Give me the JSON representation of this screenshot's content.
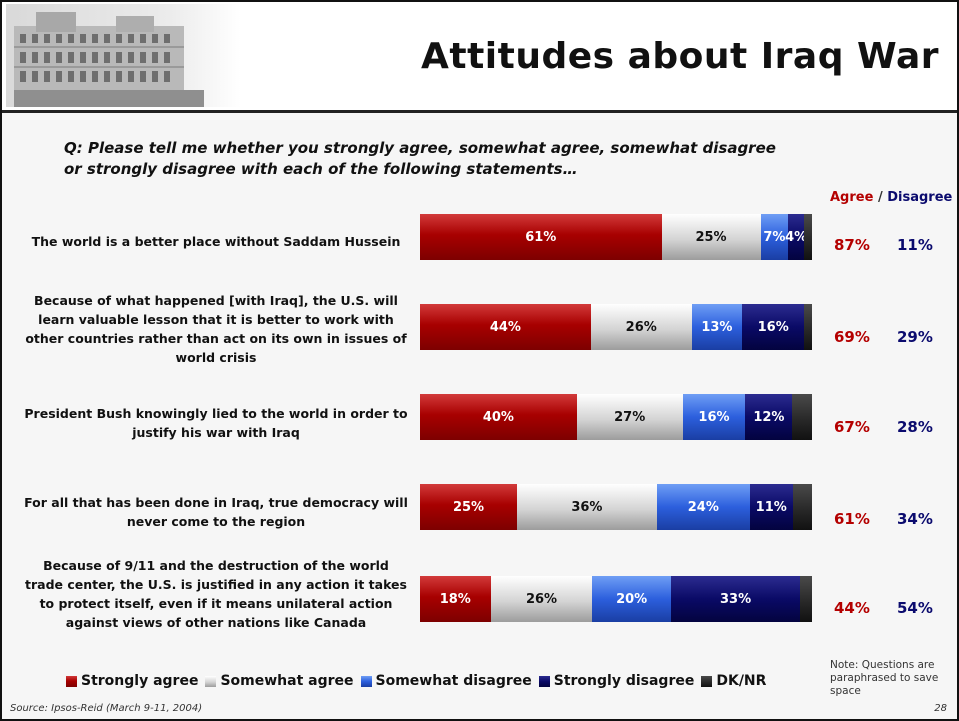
{
  "title": "Attitudes about Iraq War",
  "question": "Q:  Please tell me whether you strongly agree, somewhat agree, somewhat disagree or strongly disagree with each of the following statements…",
  "agree_header": "Agree",
  "separator": "/",
  "disagree_header": "Disagree",
  "colors": {
    "strongly_agree": "#a80000",
    "somewhat_agree": "#d4d4d4",
    "somewhat_disagree": "#2c5fdd",
    "strongly_disagree": "#0a0a66",
    "dknr": "#262626"
  },
  "chart_data": {
    "type": "bar",
    "orientation": "horizontal",
    "stacked": true,
    "categories": [
      "The world is a better place without Saddam Hussein",
      "Because of what happened [with Iraq], the U.S. will learn valuable lesson that it is better to work with other countries rather than act on its own in issues of world crisis",
      "President Bush knowingly lied to the world in order to justify his war with Iraq",
      "For all that has been done in Iraq, true democracy will never come to the region",
      "Because of 9/11 and the destruction of the world trade center, the U.S. is justified in any action it takes to protect itself, even if it means unilateral action against views of other nations like Canada"
    ],
    "series": [
      {
        "name": "Strongly agree",
        "values": [
          61,
          44,
          40,
          25,
          18
        ],
        "labels": [
          "61%",
          "44%",
          "40%",
          "25%",
          "18%"
        ]
      },
      {
        "name": "Somewhat agree",
        "values": [
          25,
          26,
          27,
          36,
          26
        ],
        "labels": [
          "25%",
          "26%",
          "27%",
          "36%",
          "26%"
        ]
      },
      {
        "name": "Somewhat disagree",
        "values": [
          7,
          13,
          16,
          24,
          20
        ],
        "labels": [
          "7%",
          "13%",
          "16%",
          "24%",
          "20%"
        ]
      },
      {
        "name": "Strongly disagree",
        "values": [
          4,
          16,
          12,
          11,
          33
        ],
        "labels": [
          "4%",
          "16%",
          "12%",
          "11%",
          "33%"
        ]
      },
      {
        "name": "DK/NR",
        "values": [
          2,
          2,
          5,
          5,
          3
        ],
        "labels": [
          "",
          "",
          "",
          "",
          ""
        ]
      }
    ],
    "agree_totals": [
      "87%",
      "69%",
      "67%",
      "61%",
      "44%"
    ],
    "disagree_totals": [
      "11%",
      "29%",
      "28%",
      "34%",
      "54%"
    ],
    "xlim": [
      0,
      100
    ],
    "legend": [
      "Strongly agree",
      "Somewhat agree",
      "Somewhat disagree",
      "Strongly disagree",
      "DK/NR"
    ],
    "legend_position": "bottom",
    "grid": false
  },
  "note": "Note:  Questions are paraphrased to save space",
  "source": "Source: Ipsos-Reid (March 9-11, 2004)",
  "page_number": "28"
}
